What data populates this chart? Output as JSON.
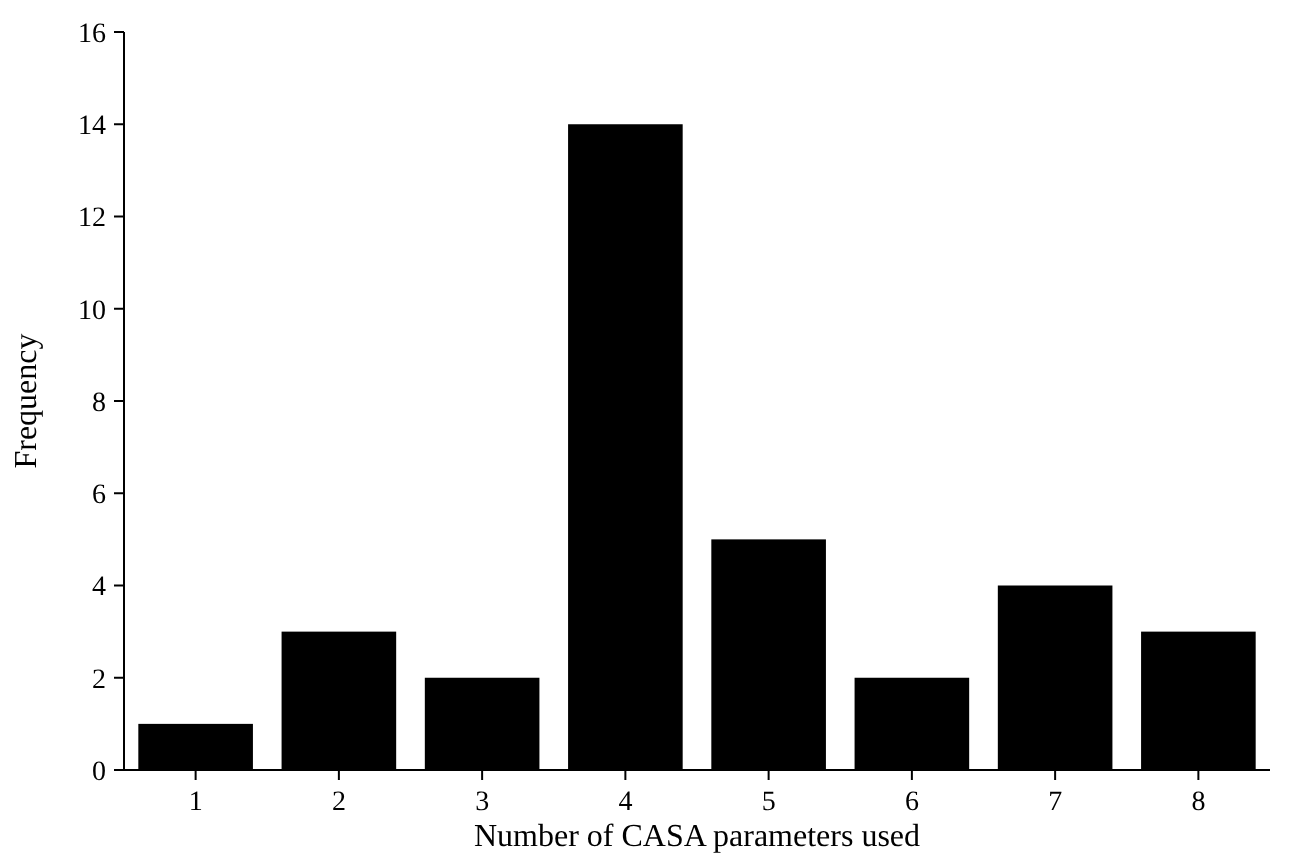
{
  "chart_data": {
    "type": "bar",
    "xlabel": "Number of CASA parameters used",
    "ylabel": "Frequency",
    "categories": [
      "1",
      "2",
      "3",
      "4",
      "5",
      "6",
      "7",
      "8"
    ],
    "values": [
      1,
      3,
      2,
      14,
      5,
      2,
      4,
      3
    ],
    "color": "#000000",
    "ylim": [
      0,
      16
    ],
    "yticks": [
      0,
      2,
      4,
      6,
      8,
      10,
      12,
      14,
      16
    ],
    "grid": false
  }
}
